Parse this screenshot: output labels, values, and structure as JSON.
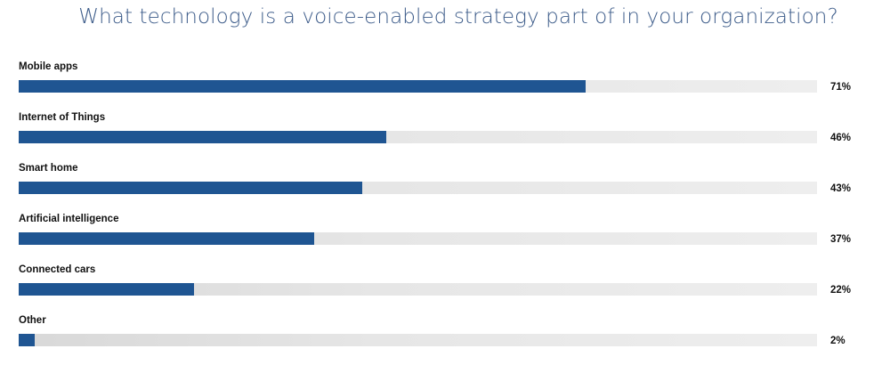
{
  "chart_data": {
    "type": "bar",
    "orientation": "horizontal",
    "title": "What technology is a voice-enabled strategy part of in your organization?",
    "categories": [
      "Mobile apps",
      "Internet of Things",
      "Smart home",
      "Artificial intelligence",
      "Connected cars",
      "Other"
    ],
    "values": [
      71,
      46,
      43,
      37,
      22,
      2
    ],
    "value_labels": [
      "71%",
      "46%",
      "43%",
      "37%",
      "22%",
      "2%"
    ],
    "xlim": [
      0,
      100
    ],
    "grid": false,
    "bar_color": "#1f5592",
    "track_color": "#e6e6e6"
  }
}
